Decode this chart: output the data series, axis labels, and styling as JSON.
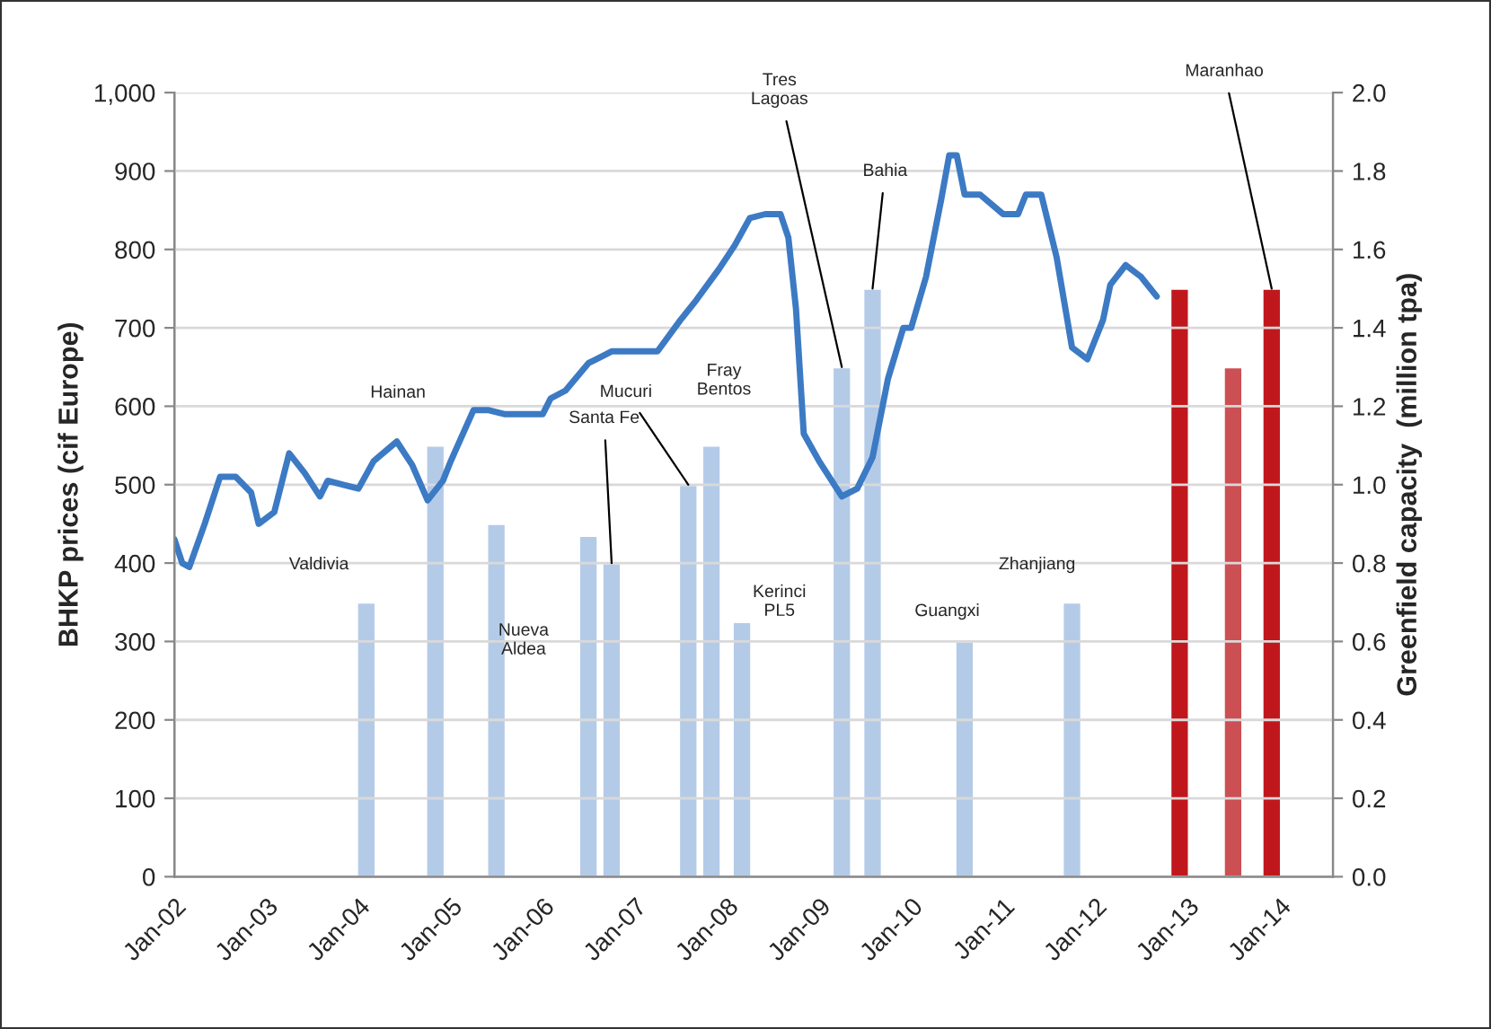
{
  "chart_data": {
    "type": "line",
    "ylabel": "BHKP prices (cif Europe)",
    "y2label": "Greenfield capacity  (million tpa)",
    "xlim": [
      "2002-01",
      "2014-08"
    ],
    "xticks": [
      {
        "value": "2002-01",
        "label": "Jan-02"
      },
      {
        "value": "2003-01",
        "label": "Jan-03"
      },
      {
        "value": "2004-01",
        "label": "Jan-04"
      },
      {
        "value": "2005-01",
        "label": "Jan-05"
      },
      {
        "value": "2006-01",
        "label": "Jan-06"
      },
      {
        "value": "2007-01",
        "label": "Jan-07"
      },
      {
        "value": "2008-01",
        "label": "Jan-08"
      },
      {
        "value": "2009-01",
        "label": "Jan-09"
      },
      {
        "value": "2010-01",
        "label": "Jan-10"
      },
      {
        "value": "2011-01",
        "label": "Jan-11"
      },
      {
        "value": "2012-01",
        "label": "Jan-12"
      },
      {
        "value": "2013-01",
        "label": "Jan-13"
      },
      {
        "value": "2014-01",
        "label": "Jan-14"
      }
    ],
    "ylim": [
      0,
      1000
    ],
    "yticks": [
      0,
      100,
      200,
      300,
      400,
      500,
      600,
      700,
      800,
      900,
      {
        "value": 1000,
        "label": "1,000"
      }
    ],
    "y2lim": [
      0,
      2.0
    ],
    "y2ticks": [
      {
        "value": 0,
        "label": "0.0"
      },
      0.2,
      0.4,
      0.6,
      0.8,
      {
        "value": 1.0,
        "label": "1.0"
      },
      1.2,
      1.4,
      1.6,
      1.8,
      {
        "value": 2.0,
        "label": "2.0"
      }
    ],
    "grid": "y",
    "legend": false,
    "line_style": "solid",
    "series": [
      {
        "color": "#3c7ac4",
        "x": [
          "2002-01",
          "2002-02",
          "2002-03",
          "2002-05",
          "2002-07",
          "2002-09",
          "2002-11",
          "2002-12",
          "2003-02",
          "2003-04",
          "2003-06",
          "2003-08",
          "2003-09",
          "2003-11",
          "2004-01",
          "2004-03",
          "2004-06",
          "2004-08",
          "2004-10",
          "2004-12",
          "2005-01",
          "2005-04",
          "2005-06",
          "2005-08",
          "2006-01",
          "2006-02",
          "2006-04",
          "2006-07",
          "2006-08",
          "2006-10",
          "2007-04",
          "2007-07",
          "2007-09",
          "2007-12",
          "2008-02",
          "2008-04",
          "2008-06",
          "2008-08",
          "2008-09",
          "2008-10",
          "2008-11",
          "2009-01",
          "2009-04",
          "2009-06",
          "2009-08",
          "2009-10",
          "2009-12",
          "2010-01",
          "2010-03",
          "2010-05",
          "2010-06",
          "2010-07",
          "2010-08",
          "2010-10",
          "2011-01",
          "2011-03",
          "2011-04",
          "2011-06",
          "2011-08",
          "2011-10",
          "2011-12",
          "2012-02",
          "2012-03",
          "2012-05",
          "2012-07",
          "2012-09"
        ],
        "values": [
          430,
          400,
          395,
          450,
          510,
          510,
          490,
          450,
          465,
          540,
          515,
          485,
          505,
          500,
          495,
          530,
          555,
          525,
          480,
          505,
          530,
          595,
          595,
          590,
          590,
          610,
          620,
          655,
          660,
          670,
          670,
          710,
          735,
          775,
          805,
          840,
          845,
          845,
          815,
          725,
          565,
          530,
          485,
          495,
          535,
          635,
          700,
          700,
          765,
          865,
          920,
          920,
          870,
          870,
          845,
          845,
          870,
          870,
          790,
          675,
          660,
          710,
          755,
          780,
          765,
          740
        ]
      },
      {
        "type": "bar",
        "axis": "y2",
        "x": [
          "2004-02",
          "2004-11",
          "2005-07",
          "2006-07",
          "2006-10",
          "2007-08",
          "2007-11",
          "2008-03",
          "2009-04",
          "2009-08",
          "2010-08",
          "2011-10",
          "2012-12",
          "2013-07",
          "2013-12"
        ],
        "values": [
          0.7,
          1.1,
          0.9,
          0.87,
          0.8,
          1.0,
          1.1,
          0.65,
          1.3,
          1.5,
          0.6,
          0.7,
          1.5,
          1.3,
          1.5
        ],
        "colors": [
          "#b4cbe8",
          "#b4cbe8",
          "#b4cbe8",
          "#b4cbe8",
          "#b4cbe8",
          "#b4cbe8",
          "#b4cbe8",
          "#b4cbe8",
          "#b4cbe8",
          "#b4cbe8",
          "#b4cbe8",
          "#b4cbe8",
          "#c0171d",
          "#cc4f53",
          "#c0171d"
        ]
      }
    ],
    "annotations": [
      "Valdivia",
      "Hainan",
      "Nueva\nAldea",
      {
        "text": "Santa Fe",
        "x": "2006-10",
        "y": 400
      },
      {
        "text": "Mucuri",
        "x": "2007-08",
        "y": 500
      },
      "Fray\nBentos",
      "Kerinci\nPL5",
      {
        "text": "Tres\nLagoas",
        "x": "2009-04",
        "y": 650
      },
      {
        "text": "Bahia",
        "x": "2009-08",
        "y": 750
      },
      "Guangxi",
      "Zhanjiang",
      {
        "text": "Maranhao",
        "x": "2013-12",
        "y": 750
      }
    ]
  }
}
